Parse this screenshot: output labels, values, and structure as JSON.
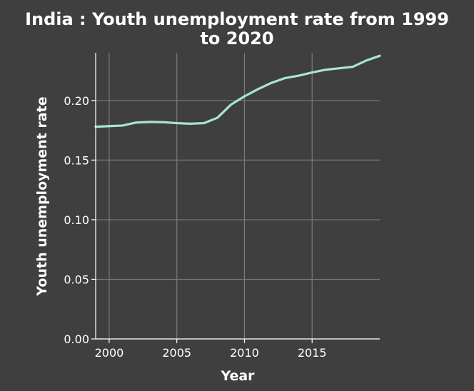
{
  "chart_data": {
    "type": "line",
    "title_lines": [
      "India : Youth unemployment rate from 1999",
      "to 2020"
    ],
    "xlabel": "Year",
    "ylabel": "Youth unemployment rate",
    "xlim": [
      1999,
      2020
    ],
    "ylim": [
      0,
      0.24
    ],
    "x_ticks": [
      2000,
      2005,
      2010,
      2015
    ],
    "x_tick_labels": [
      "2000",
      "2005",
      "2010",
      "2015"
    ],
    "y_ticks": [
      0,
      0.05,
      0.1,
      0.15,
      0.2
    ],
    "y_tick_labels": [
      "0.00",
      "0.05",
      "0.10",
      "0.15",
      "0.20"
    ],
    "grid": true,
    "series": [
      {
        "color": "#a8e6cf",
        "x": [
          1999,
          2000,
          2001,
          2002,
          2003,
          2004,
          2005,
          2006,
          2007,
          2008,
          2009,
          2010,
          2011,
          2012,
          2013,
          2014,
          2015,
          2016,
          2017,
          2018,
          2019,
          2020
        ],
        "y": [
          0.178,
          0.1785,
          0.179,
          0.1815,
          0.182,
          0.1818,
          0.181,
          0.1805,
          0.181,
          0.1855,
          0.1965,
          0.2035,
          0.2095,
          0.2148,
          0.2188,
          0.2208,
          0.2235,
          0.2258,
          0.227,
          0.2282,
          0.2335,
          0.2375
        ]
      }
    ]
  }
}
